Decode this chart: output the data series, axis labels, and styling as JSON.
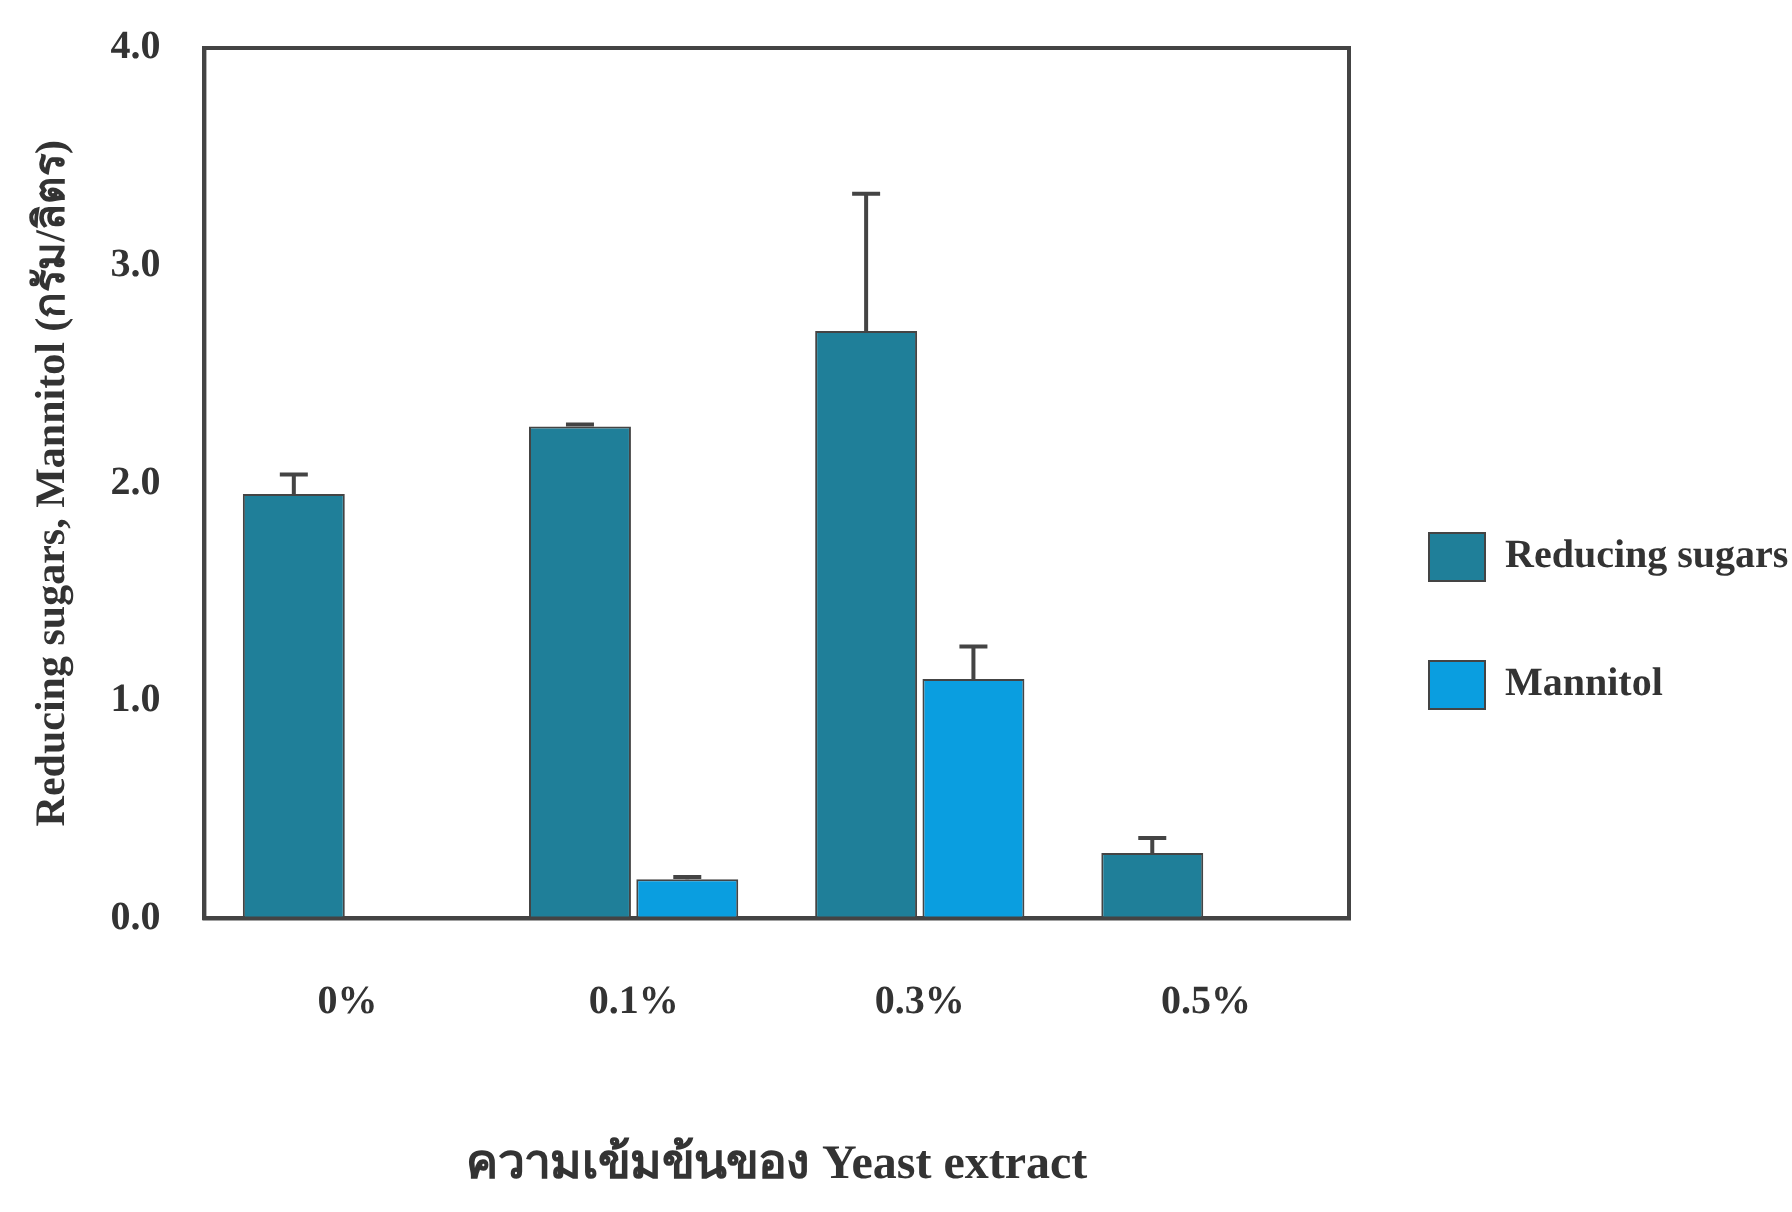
{
  "chart_data": {
    "type": "bar",
    "xlabel": "ความเข้มข้นของ Yeast extract",
    "ylabel": "Reducing sugars, Mannitol (กรัม/ลิตร)",
    "categories": [
      "0%",
      "0.1%",
      "0.3%",
      "0.5%"
    ],
    "series": [
      {
        "name": "Reducing sugars",
        "color": "#1f7f99",
        "values": [
          1.95,
          2.26,
          2.7,
          0.3
        ],
        "errors": [
          0.09,
          0.01,
          0.63,
          0.07
        ]
      },
      {
        "name": "Mannitol",
        "color": "#0a9ee0",
        "values": [
          null,
          0.18,
          1.1,
          null
        ],
        "errors": [
          null,
          0.01,
          0.15,
          null
        ]
      }
    ],
    "ylim": [
      0,
      4
    ],
    "yticks": [
      {
        "value": 0,
        "label": "0.0"
      },
      {
        "value": 1,
        "label": "1.0"
      },
      {
        "value": 2,
        "label": "2.0"
      },
      {
        "value": 3,
        "label": "3.0"
      },
      {
        "value": 4,
        "label": "4.0"
      }
    ],
    "grid": false,
    "legend": "right"
  }
}
